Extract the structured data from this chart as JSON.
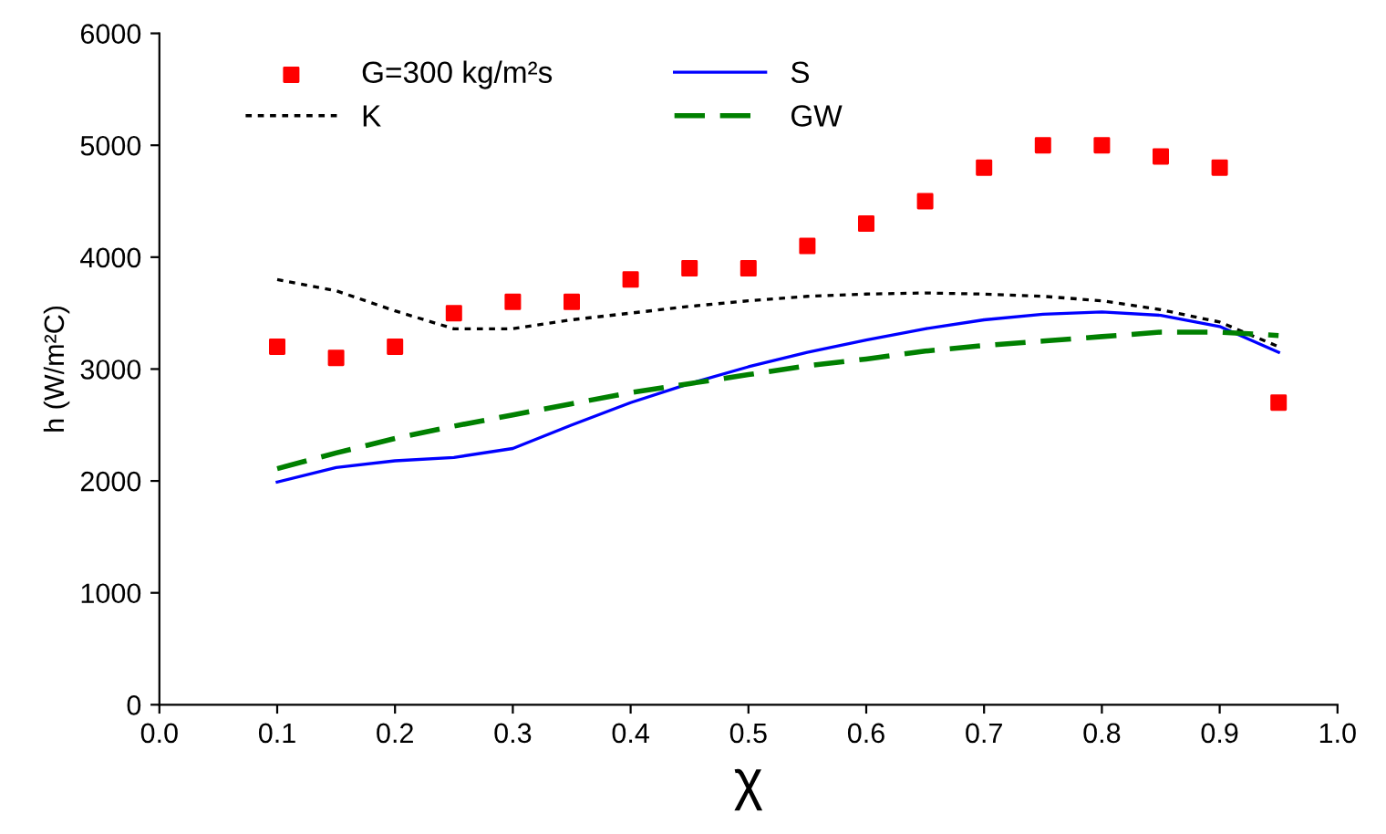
{
  "chart_data": {
    "type": "line",
    "xlabel": "χ",
    "ylabel": "h (W/m²C)",
    "xlim": [
      0.0,
      1.0
    ],
    "ylim": [
      0,
      6000
    ],
    "xticks": [
      {
        "value": 0,
        "label": "0.0"
      },
      0.1,
      0.2,
      0.3,
      0.4,
      0.5,
      0.6,
      0.7,
      0.8,
      0.9,
      {
        "value": 1,
        "label": "1.0"
      }
    ],
    "yticks": [
      0,
      1000,
      2000,
      3000,
      4000,
      5000,
      6000
    ],
    "grid": false,
    "legend": "top left",
    "x": [
      0.1,
      0.15,
      0.2,
      0.25,
      0.3,
      0.35,
      0.4,
      0.45,
      0.5,
      0.55,
      0.6,
      0.65,
      0.7,
      0.75,
      0.8,
      0.85,
      0.9,
      0.95
    ],
    "series": [
      {
        "name": "G=300 kg/m²s",
        "type": "scatter",
        "marker": "square",
        "color": "#ff0000",
        "values": [
          3200,
          3100,
          3200,
          3500,
          3600,
          3600,
          3800,
          3900,
          3900,
          4100,
          4300,
          4500,
          4800,
          5000,
          5000,
          4900,
          4800,
          2700
        ]
      },
      {
        "name": "S",
        "line_style": "solid",
        "color": "#0000ff",
        "values": [
          1990,
          2120,
          2180,
          2210,
          2290,
          2500,
          2700,
          2870,
          3020,
          3150,
          3260,
          3360,
          3440,
          3490,
          3510,
          3480,
          3380,
          3150
        ]
      },
      {
        "name": "K",
        "line_style": "dotted",
        "color": "#000000",
        "values": [
          3800,
          3700,
          3520,
          3360,
          3360,
          3440,
          3500,
          3560,
          3610,
          3650,
          3670,
          3680,
          3670,
          3650,
          3610,
          3530,
          3420,
          3200
        ]
      },
      {
        "name": "GW",
        "line_style": "dashed",
        "color": "#008000",
        "values": [
          2110,
          2250,
          2380,
          2490,
          2590,
          2690,
          2790,
          2870,
          2950,
          3030,
          3090,
          3160,
          3210,
          3250,
          3290,
          3330,
          3330,
          3300
        ]
      }
    ]
  }
}
